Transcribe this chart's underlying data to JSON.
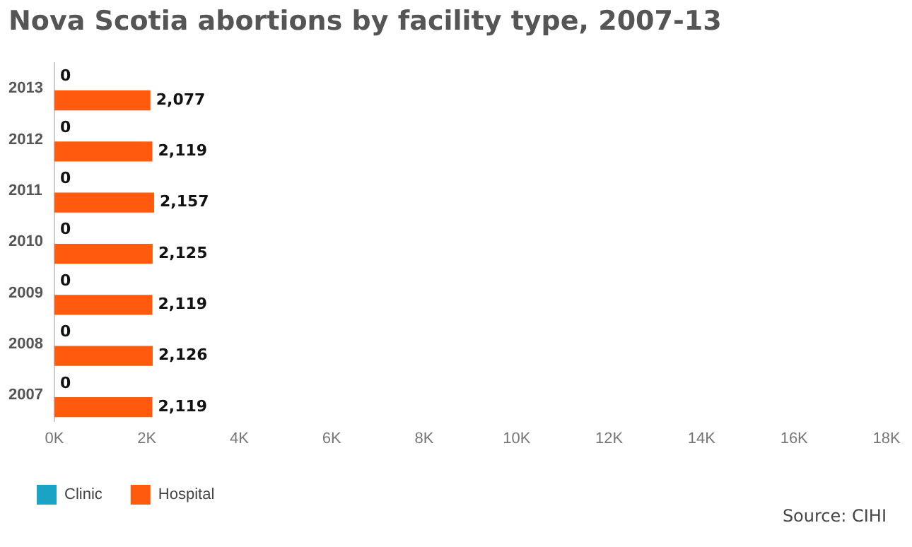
{
  "chart_data": {
    "type": "bar",
    "orientation": "horizontal",
    "title": "Nova Scotia abortions by facility type, 2007-13",
    "categories": [
      "2013",
      "2012",
      "2011",
      "2010",
      "2009",
      "2008",
      "2007"
    ],
    "series": [
      {
        "name": "Clinic",
        "color": "#1ba3c6",
        "values": [
          0,
          0,
          0,
          0,
          0,
          0,
          0
        ],
        "value_labels": [
          "0",
          "0",
          "0",
          "0",
          "0",
          "0",
          "0"
        ]
      },
      {
        "name": "Hospital",
        "color": "#ff5a0e",
        "values": [
          2077,
          2119,
          2157,
          2125,
          2119,
          2126,
          2119
        ],
        "value_labels": [
          "2,077",
          "2,119",
          "2,157",
          "2,125",
          "2,119",
          "2,126",
          "2,119"
        ]
      }
    ],
    "xlim": [
      0,
      18000
    ],
    "xticks": [
      {
        "value": 0,
        "label": "0K"
      },
      {
        "value": 2000,
        "label": "2K"
      },
      {
        "value": 4000,
        "label": "4K"
      },
      {
        "value": 6000,
        "label": "6K"
      },
      {
        "value": 8000,
        "label": "8K"
      },
      {
        "value": 10000,
        "label": "10K"
      },
      {
        "value": 12000,
        "label": "12K"
      },
      {
        "value": 14000,
        "label": "14K"
      },
      {
        "value": 16000,
        "label": "16K"
      },
      {
        "value": 18000,
        "label": "18K"
      }
    ],
    "grid": false,
    "legend": "bottom left",
    "annotations": [
      "Source: CIHI"
    ]
  }
}
